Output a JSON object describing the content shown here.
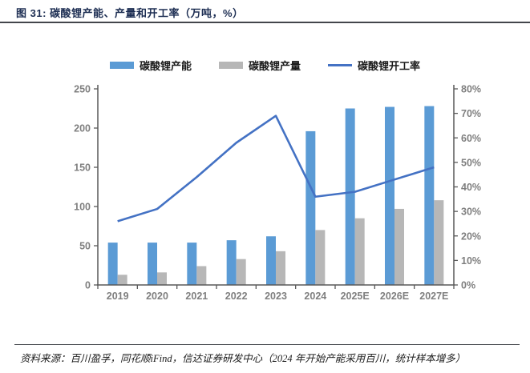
{
  "figure": {
    "title": "图 31: 碳酸锂产能、产量和开工率（万吨，%）",
    "source_note": "资料来源：百川盈孚，同花顺iFind，信达证券研发中心（2024 年开始产能采用百川，统计样本增多）"
  },
  "colors": {
    "capacity_bar": "#5B9BD5",
    "production_bar": "#B7B7B7",
    "rate_line": "#4472C4",
    "axis_line": "#595959",
    "axis_text": "#7f7f7f",
    "title_text": "#1c2d52"
  },
  "chart_data": {
    "type": "bar",
    "subtype": "bar+line combo",
    "title": "碳酸锂产能、产量和开工率（万吨，%）",
    "categories": [
      "2019",
      "2020",
      "2021",
      "2022",
      "2023",
      "2024",
      "2025E",
      "2026E",
      "2027E"
    ],
    "series": [
      {
        "name": "碳酸锂产能",
        "type": "bar",
        "axis": "left",
        "values": [
          54,
          54,
          54,
          57,
          62,
          196,
          225,
          227,
          228
        ]
      },
      {
        "name": "碳酸锂产量",
        "type": "bar",
        "axis": "left",
        "values": [
          13,
          16,
          24,
          33,
          43,
          70,
          85,
          97,
          108
        ]
      },
      {
        "name": "碳酸锂开工率",
        "type": "line",
        "axis": "right",
        "values": [
          26,
          31,
          44,
          58,
          69,
          36,
          38,
          43,
          48
        ]
      }
    ],
    "left_axis": {
      "min": 0,
      "max": 250,
      "step": 50,
      "tick_labels": [
        "0",
        "50",
        "100",
        "150",
        "200",
        "250"
      ]
    },
    "right_axis": {
      "min": 0,
      "max": 80,
      "step": 10,
      "tick_labels": [
        "0%",
        "10%",
        "20%",
        "30%",
        "40%",
        "50%",
        "60%",
        "70%",
        "80%"
      ]
    },
    "legend_position": "top",
    "grid": false
  }
}
